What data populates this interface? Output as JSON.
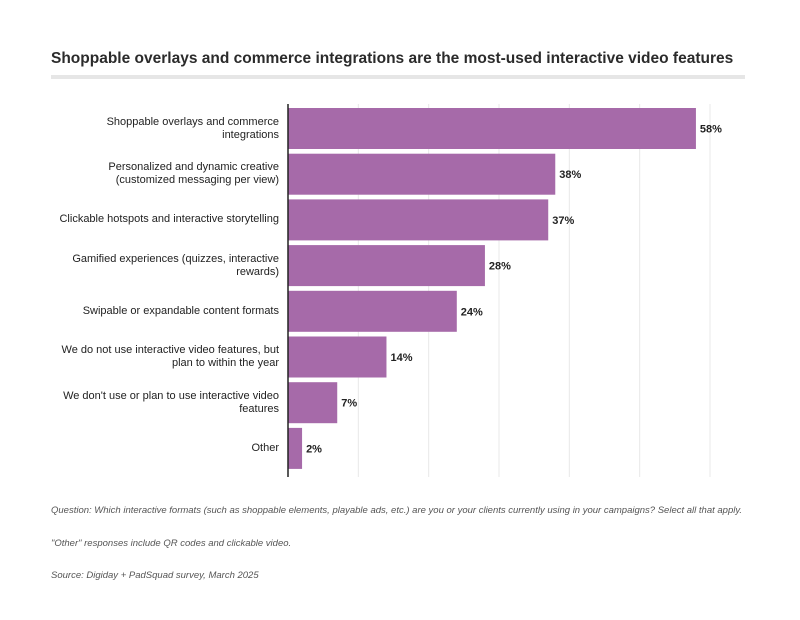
{
  "title": "Shoppable overlays and commerce integrations are the most-used interactive video features",
  "chart_data": {
    "type": "bar",
    "orientation": "horizontal",
    "categories": [
      "Shoppable overlays and commerce integrations",
      "Personalized and dynamic creative (customized messaging per view)",
      "Clickable hotspots and interactive storytelling",
      "Gamified experiences (quizzes, interactive rewards)",
      "Swipable or expandable content formats",
      "We do not use interactive video features, but plan to within the year",
      "We don't use or plan to use interactive video features",
      "Other"
    ],
    "values": [
      58,
      38,
      37,
      28,
      24,
      14,
      7,
      2
    ],
    "value_labels": [
      "58%",
      "38%",
      "37%",
      "28%",
      "24%",
      "14%",
      "7%",
      "2%"
    ],
    "xlim": [
      0,
      60
    ],
    "unit": "%",
    "bar_color": "#a66aa9",
    "grid": true
  },
  "footnotes": {
    "question": "Question: Which interactive formats (such as shoppable elements, playable ads, etc.) are you or your clients currently using in your campaigns? Select all that apply.",
    "other_note": "\"Other\" responses include QR codes and clickable video.",
    "source": "Source: Digiday + PadSquad survey, March 2025"
  }
}
